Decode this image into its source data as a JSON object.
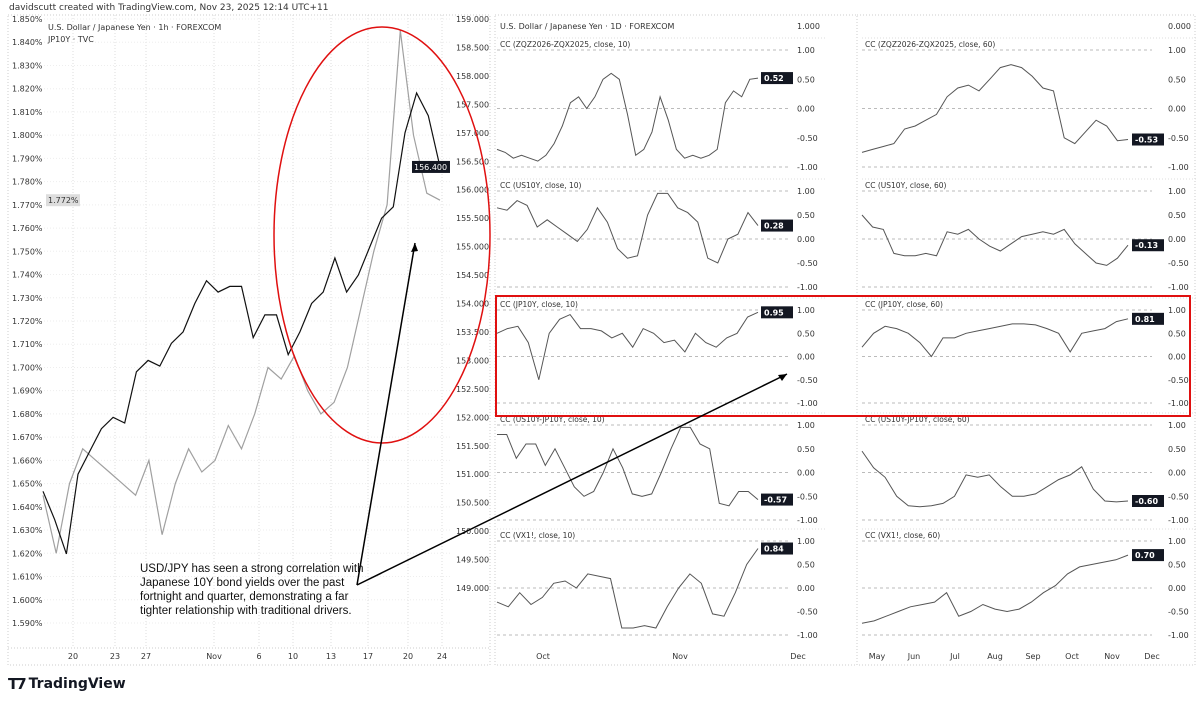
{
  "header": {
    "credit": "davidscutt created with TradingView.com, Nov 23, 2025 12:14 UTC+11"
  },
  "annotation": {
    "text": "USD/JPY has seen a strong correlation with Japanese 10Y bond yields over the past fortnight and quarter, demonstrating a far tighter relationship with traditional drivers."
  },
  "footer": {
    "logo_text": "TradingView"
  },
  "colors": {
    "usdjpy": "#111111",
    "jp10y": "#a0a0a0",
    "highlight": "#e01010",
    "badge": "#131722",
    "corr_line": "#555555"
  },
  "chart_data": [
    {
      "type": "line",
      "legend": [
        "U.S. Dollar / Japanese Yen · 1h · FOREXCOM",
        "JP10Y · TVC"
      ],
      "x_ticks": [
        "20",
        "23",
        "27",
        "Nov",
        "6",
        "10",
        "13",
        "17",
        "20",
        "24"
      ],
      "left_axis": {
        "ylim": [
          1.59,
          1.85
        ],
        "ticks": [
          "1.850%",
          "1.840%",
          "1.830%",
          "1.820%",
          "1.810%",
          "1.800%",
          "1.790%",
          "1.780%",
          "1.770%",
          "1.760%",
          "1.750%",
          "1.740%",
          "1.730%",
          "1.720%",
          "1.710%",
          "1.700%",
          "1.690%",
          "1.680%",
          "1.670%",
          "1.660%",
          "1.650%",
          "1.640%",
          "1.630%",
          "1.620%",
          "1.610%",
          "1.600%",
          "1.590%"
        ],
        "last": "1.772%"
      },
      "right_axis": {
        "ylim": [
          149,
          159
        ],
        "ticks": [
          "159.000",
          "158.500",
          "158.000",
          "157.500",
          "157.000",
          "156.500",
          "156.000",
          "155.500",
          "155.000",
          "154.500",
          "154.000",
          "153.500",
          "153.000",
          "152.500",
          "152.000",
          "151.500",
          "151.000",
          "150.500",
          "150.000",
          "149.500",
          "149.000"
        ],
        "last": "156.400"
      },
      "series": [
        {
          "name": "U.S. Dollar / Japanese Yen · 1h · FOREXCOM",
          "axis": "right",
          "values": [
            150.7,
            150.2,
            149.6,
            151.0,
            151.4,
            151.8,
            152.0,
            151.9,
            152.8,
            153.0,
            152.9,
            153.3,
            153.5,
            154.0,
            154.4,
            154.2,
            154.3,
            154.3,
            153.4,
            153.8,
            153.8,
            153.1,
            153.5,
            154.0,
            154.2,
            154.8,
            154.2,
            154.5,
            155.0,
            155.5,
            155.7,
            157.0,
            157.7,
            157.3,
            156.4
          ]
        },
        {
          "name": "JP10Y · TVC",
          "axis": "left",
          "values": [
            1.645,
            1.62,
            1.65,
            1.665,
            1.66,
            1.655,
            1.65,
            1.645,
            1.66,
            1.628,
            1.65,
            1.665,
            1.655,
            1.66,
            1.675,
            1.665,
            1.68,
            1.7,
            1.695,
            1.705,
            1.69,
            1.68,
            1.685,
            1.7,
            1.725,
            1.75,
            1.77,
            1.845,
            1.8,
            1.775,
            1.772
          ]
        }
      ]
    },
    {
      "type": "line",
      "legend": [
        "U.S. Dollar / Japanese Yen · 1D · FOREXCOM"
      ],
      "top_axis_label_left": "1.000",
      "top_axis_label_right": "0.000",
      "x_ticks_left": [
        "Oct",
        "Nov",
        "Dec"
      ],
      "x_ticks_right": [
        "May",
        "Jun",
        "Jul",
        "Aug",
        "Sep",
        "Oct",
        "Nov",
        "Dec"
      ],
      "y_ticks": [
        "1.00",
        "0.50",
        "0.00",
        "-0.50",
        "-1.00"
      ],
      "ylim": [
        -1,
        1
      ],
      "panels": [
        {
          "title": "CC (ZQZ2026-ZQX2025, close, 10)",
          "last": "0.52",
          "values": [
            -0.7,
            -0.75,
            -0.85,
            -0.8,
            -0.85,
            -0.9,
            -0.8,
            -0.6,
            -0.3,
            0.1,
            0.2,
            0.0,
            0.2,
            0.5,
            0.6,
            0.5,
            -0.1,
            -0.8,
            -0.7,
            -0.4,
            0.2,
            -0.2,
            -0.7,
            -0.85,
            -0.8,
            -0.85,
            -0.8,
            -0.7,
            0.1,
            0.3,
            0.2,
            0.5,
            0.52
          ]
        },
        {
          "title": "CC (ZQZ2026-ZQX2025, close, 60)",
          "last": "-0.53",
          "values": [
            -0.75,
            -0.7,
            -0.65,
            -0.6,
            -0.35,
            -0.3,
            -0.2,
            -0.1,
            0.2,
            0.35,
            0.4,
            0.3,
            0.5,
            0.7,
            0.75,
            0.7,
            0.55,
            0.35,
            0.3,
            -0.5,
            -0.6,
            -0.4,
            -0.2,
            -0.3,
            -0.55,
            -0.53
          ]
        },
        {
          "title": "CC (US10Y, close, 10)",
          "last": "0.28",
          "values": [
            0.65,
            0.6,
            0.8,
            0.7,
            0.25,
            0.4,
            0.25,
            0.1,
            -0.05,
            0.2,
            0.65,
            0.35,
            -0.2,
            -0.4,
            -0.35,
            0.5,
            0.95,
            0.95,
            0.65,
            0.55,
            0.35,
            -0.4,
            -0.5,
            0.0,
            0.1,
            0.55,
            0.28
          ]
        },
        {
          "title": "CC (US10Y, close, 60)",
          "last": "-0.13",
          "values": [
            0.5,
            0.25,
            0.2,
            -0.3,
            -0.35,
            -0.35,
            -0.3,
            -0.35,
            0.15,
            0.1,
            0.2,
            0.0,
            -0.15,
            -0.25,
            -0.1,
            0.05,
            0.1,
            0.15,
            0.1,
            0.2,
            -0.1,
            -0.3,
            -0.5,
            -0.55,
            -0.4,
            -0.13
          ]
        },
        {
          "title": "CC (JP10Y, close, 10)",
          "last": "0.95",
          "values": [
            0.5,
            0.6,
            0.65,
            0.3,
            -0.5,
            0.5,
            0.8,
            0.9,
            0.6,
            0.6,
            0.55,
            0.4,
            0.5,
            0.2,
            0.6,
            0.5,
            0.3,
            0.35,
            0.1,
            0.5,
            0.3,
            0.2,
            0.4,
            0.5,
            0.85,
            0.95
          ]
        },
        {
          "title": "CC (JP10Y, close, 60)",
          "last": "0.81",
          "values": [
            0.2,
            0.5,
            0.65,
            0.6,
            0.5,
            0.3,
            0.0,
            0.4,
            0.4,
            0.5,
            0.55,
            0.6,
            0.65,
            0.7,
            0.7,
            0.68,
            0.6,
            0.5,
            0.1,
            0.5,
            0.55,
            0.6,
            0.75,
            0.81
          ]
        },
        {
          "title": "CC (US10Y-JP10Y, close, 10)",
          "last": "-0.57",
          "values": [
            0.8,
            0.8,
            0.3,
            0.6,
            0.6,
            0.15,
            0.5,
            0.1,
            -0.3,
            -0.5,
            -0.4,
            0.0,
            0.5,
            0.1,
            -0.45,
            -0.5,
            -0.45,
            0.0,
            0.5,
            0.95,
            0.95,
            0.6,
            0.5,
            -0.65,
            -0.7,
            -0.4,
            -0.4,
            -0.57
          ]
        },
        {
          "title": "CC (US10Y-JP10Y, close, 60)",
          "last": "-0.60",
          "values": [
            0.45,
            0.1,
            -0.1,
            -0.5,
            -0.7,
            -0.72,
            -0.7,
            -0.65,
            -0.5,
            -0.05,
            -0.1,
            -0.05,
            -0.3,
            -0.5,
            -0.5,
            -0.45,
            -0.3,
            -0.15,
            -0.05,
            0.12,
            -0.35,
            -0.6,
            -0.62,
            -0.6
          ]
        },
        {
          "title": "CC (VX1!, close, 10)",
          "last": "0.84",
          "values": [
            -0.3,
            -0.4,
            -0.1,
            -0.35,
            -0.2,
            0.1,
            0.15,
            0.0,
            0.3,
            0.25,
            0.2,
            -0.85,
            -0.85,
            -0.8,
            -0.85,
            -0.4,
            0.0,
            0.3,
            0.1,
            -0.55,
            -0.6,
            -0.1,
            0.5,
            0.84
          ]
        },
        {
          "title": "CC (VX1!, close, 60)",
          "last": "0.70",
          "values": [
            -0.75,
            -0.7,
            -0.6,
            -0.5,
            -0.4,
            -0.35,
            -0.3,
            -0.1,
            -0.6,
            -0.5,
            -0.35,
            -0.45,
            -0.5,
            -0.45,
            -0.3,
            -0.1,
            0.05,
            0.3,
            0.45,
            0.5,
            0.55,
            0.6,
            0.7
          ]
        }
      ]
    }
  ]
}
